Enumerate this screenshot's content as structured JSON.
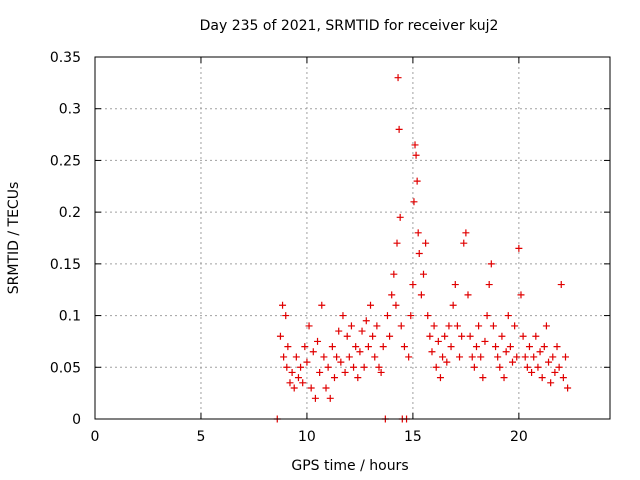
{
  "chart_data": {
    "type": "scatter",
    "title": "Day 235 of 2021, SRMTID for receiver kuj2",
    "xlabel": "GPS time / hours",
    "ylabel": "SRMTID / TECUs",
    "xlim": [
      0,
      24.3
    ],
    "ylim": [
      0,
      0.35
    ],
    "x_ticks": [
      0,
      5,
      10,
      15,
      20
    ],
    "x_tick_labels": [
      "0",
      "5",
      "10",
      "15",
      "20"
    ],
    "y_ticks": [
      0,
      0.05,
      0.1,
      0.15,
      0.2,
      0.25,
      0.3,
      0.35
    ],
    "y_tick_labels": [
      "0",
      "0.05",
      "0.1",
      "0.15",
      "0.2",
      "0.25",
      "0.3",
      "0.35"
    ],
    "grid": true,
    "marker": "+",
    "series": [
      {
        "name": "SRMTID",
        "color": "#e00000",
        "points": [
          [
            8.6,
            0.0
          ],
          [
            8.75,
            0.08
          ],
          [
            8.85,
            0.11
          ],
          [
            8.9,
            0.06
          ],
          [
            9.0,
            0.1
          ],
          [
            9.05,
            0.05
          ],
          [
            9.1,
            0.07
          ],
          [
            9.2,
            0.035
          ],
          [
            9.3,
            0.045
          ],
          [
            9.4,
            0.03
          ],
          [
            9.5,
            0.06
          ],
          [
            9.6,
            0.04
          ],
          [
            9.7,
            0.05
          ],
          [
            9.8,
            0.035
          ],
          [
            9.9,
            0.07
          ],
          [
            10.0,
            0.055
          ],
          [
            10.1,
            0.09
          ],
          [
            10.2,
            0.03
          ],
          [
            10.3,
            0.065
          ],
          [
            10.4,
            0.02
          ],
          [
            10.5,
            0.075
          ],
          [
            10.6,
            0.045
          ],
          [
            10.7,
            0.11
          ],
          [
            10.8,
            0.06
          ],
          [
            10.9,
            0.03
          ],
          [
            11.0,
            0.05
          ],
          [
            11.1,
            0.02
          ],
          [
            11.2,
            0.07
          ],
          [
            11.3,
            0.04
          ],
          [
            11.4,
            0.06
          ],
          [
            11.5,
            0.085
          ],
          [
            11.6,
            0.055
          ],
          [
            11.7,
            0.1
          ],
          [
            11.8,
            0.045
          ],
          [
            11.9,
            0.08
          ],
          [
            12.0,
            0.06
          ],
          [
            12.1,
            0.09
          ],
          [
            12.2,
            0.05
          ],
          [
            12.3,
            0.07
          ],
          [
            12.4,
            0.04
          ],
          [
            12.5,
            0.065
          ],
          [
            12.6,
            0.085
          ],
          [
            12.7,
            0.05
          ],
          [
            12.8,
            0.095
          ],
          [
            12.9,
            0.07
          ],
          [
            13.0,
            0.11
          ],
          [
            13.1,
            0.08
          ],
          [
            13.2,
            0.06
          ],
          [
            13.3,
            0.09
          ],
          [
            13.4,
            0.05
          ],
          [
            13.5,
            0.045
          ],
          [
            13.6,
            0.07
          ],
          [
            13.7,
            0.0
          ],
          [
            13.8,
            0.1
          ],
          [
            13.9,
            0.08
          ],
          [
            14.0,
            0.12
          ],
          [
            14.1,
            0.14
          ],
          [
            14.2,
            0.11
          ],
          [
            14.25,
            0.17
          ],
          [
            14.3,
            0.33
          ],
          [
            14.35,
            0.28
          ],
          [
            14.4,
            0.195
          ],
          [
            14.45,
            0.09
          ],
          [
            14.5,
            0.0
          ],
          [
            14.6,
            0.07
          ],
          [
            14.7,
            0.0
          ],
          [
            14.8,
            0.06
          ],
          [
            14.9,
            0.1
          ],
          [
            15.0,
            0.13
          ],
          [
            15.05,
            0.21
          ],
          [
            15.1,
            0.265
          ],
          [
            15.15,
            0.255
          ],
          [
            15.2,
            0.23
          ],
          [
            15.25,
            0.18
          ],
          [
            15.3,
            0.16
          ],
          [
            15.4,
            0.12
          ],
          [
            15.5,
            0.14
          ],
          [
            15.6,
            0.17
          ],
          [
            15.7,
            0.1
          ],
          [
            15.8,
            0.08
          ],
          [
            15.9,
            0.065
          ],
          [
            16.0,
            0.09
          ],
          [
            16.1,
            0.05
          ],
          [
            16.2,
            0.075
          ],
          [
            16.3,
            0.04
          ],
          [
            16.4,
            0.06
          ],
          [
            16.5,
            0.08
          ],
          [
            16.6,
            0.055
          ],
          [
            16.7,
            0.09
          ],
          [
            16.8,
            0.07
          ],
          [
            16.9,
            0.11
          ],
          [
            17.0,
            0.13
          ],
          [
            17.1,
            0.09
          ],
          [
            17.2,
            0.06
          ],
          [
            17.3,
            0.08
          ],
          [
            17.4,
            0.17
          ],
          [
            17.5,
            0.18
          ],
          [
            17.6,
            0.12
          ],
          [
            17.7,
            0.08
          ],
          [
            17.8,
            0.06
          ],
          [
            17.9,
            0.05
          ],
          [
            18.0,
            0.07
          ],
          [
            18.1,
            0.09
          ],
          [
            18.2,
            0.06
          ],
          [
            18.3,
            0.04
          ],
          [
            18.4,
            0.075
          ],
          [
            18.5,
            0.1
          ],
          [
            18.6,
            0.13
          ],
          [
            18.7,
            0.15
          ],
          [
            18.8,
            0.09
          ],
          [
            18.9,
            0.07
          ],
          [
            19.0,
            0.06
          ],
          [
            19.1,
            0.05
          ],
          [
            19.2,
            0.08
          ],
          [
            19.3,
            0.04
          ],
          [
            19.4,
            0.065
          ],
          [
            19.5,
            0.1
          ],
          [
            19.6,
            0.07
          ],
          [
            19.7,
            0.055
          ],
          [
            19.8,
            0.09
          ],
          [
            19.9,
            0.06
          ],
          [
            20.0,
            0.165
          ],
          [
            20.1,
            0.12
          ],
          [
            20.2,
            0.08
          ],
          [
            20.3,
            0.06
          ],
          [
            20.4,
            0.05
          ],
          [
            20.5,
            0.07
          ],
          [
            20.6,
            0.045
          ],
          [
            20.7,
            0.06
          ],
          [
            20.8,
            0.08
          ],
          [
            20.9,
            0.05
          ],
          [
            21.0,
            0.065
          ],
          [
            21.1,
            0.04
          ],
          [
            21.2,
            0.07
          ],
          [
            21.3,
            0.09
          ],
          [
            21.4,
            0.055
          ],
          [
            21.5,
            0.035
          ],
          [
            21.6,
            0.06
          ],
          [
            21.7,
            0.045
          ],
          [
            21.8,
            0.07
          ],
          [
            21.9,
            0.05
          ],
          [
            22.0,
            0.13
          ],
          [
            22.1,
            0.04
          ],
          [
            22.2,
            0.06
          ],
          [
            22.3,
            0.03
          ]
        ]
      }
    ]
  }
}
